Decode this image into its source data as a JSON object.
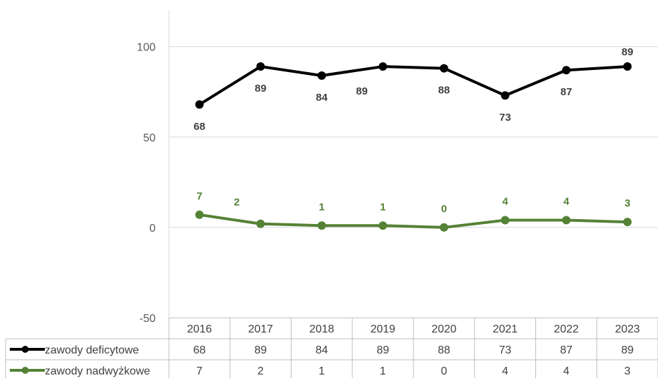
{
  "chart_data": {
    "type": "line",
    "categories": [
      "2016",
      "2017",
      "2018",
      "2019",
      "2020",
      "2021",
      "2022",
      "2023"
    ],
    "series": [
      {
        "name": "zawody deficytowe",
        "values": [
          68,
          89,
          84,
          89,
          88,
          73,
          87,
          89
        ],
        "color": "#000000"
      },
      {
        "name": "zawody nadwyżkowe",
        "values": [
          7,
          2,
          1,
          1,
          0,
          4,
          4,
          3
        ],
        "color": "#548235"
      }
    ],
    "yticks": [
      100,
      50,
      0,
      -50
    ],
    "ylim": [
      -50,
      120
    ],
    "grid": true,
    "legend": "data-table",
    "data_table": true
  }
}
